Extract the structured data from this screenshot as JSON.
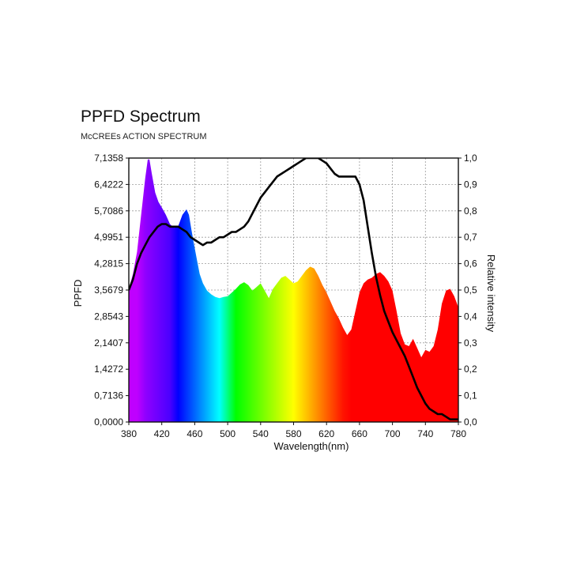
{
  "chart_data": {
    "type": "area",
    "title": "PPFD Spectrum",
    "subtitle": "McCREEs ACTION SPECTRUM",
    "xlabel": "Wavelength(nm)",
    "ylabel": "PPFD",
    "y2label": "Relative intensity",
    "xlim": [
      380,
      780
    ],
    "ylim": [
      0,
      7.1358
    ],
    "y2lim": [
      0,
      1.0
    ],
    "x_ticks": [
      "380",
      "420",
      "460",
      "500",
      "540",
      "580",
      "620",
      "660",
      "700",
      "740",
      "780"
    ],
    "y_ticks": [
      "0,0000",
      "0,7136",
      "1,4272",
      "2,1407",
      "2,8543",
      "3,5679",
      "4,2815",
      "4,9951",
      "5,7086",
      "6,4222",
      "7,1358"
    ],
    "y2_ticks": [
      "0,0",
      "0,1",
      "0,2",
      "0,3",
      "0,4",
      "0,5",
      "0,6",
      "0,7",
      "0,8",
      "0,9",
      "1,0"
    ],
    "grid": true,
    "fill": "rainbow-by-wavelength",
    "series": [
      {
        "axis": "left",
        "x": [
          380,
          385,
          390,
          395,
          400,
          403,
          405,
          408,
          412,
          416,
          420,
          425,
          430,
          435,
          440,
          445,
          450,
          453,
          456,
          460,
          463,
          466,
          470,
          475,
          480,
          485,
          490,
          495,
          500,
          505,
          510,
          515,
          520,
          525,
          530,
          535,
          540,
          545,
          550,
          555,
          560,
          565,
          570,
          575,
          580,
          585,
          590,
          595,
          600,
          605,
          610,
          615,
          620,
          625,
          630,
          635,
          640,
          645,
          650,
          655,
          660,
          665,
          670,
          675,
          680,
          685,
          690,
          695,
          700,
          705,
          710,
          715,
          720,
          725,
          730,
          735,
          740,
          745,
          750,
          755,
          760,
          765,
          770,
          775,
          780
        ],
        "values": [
          3.6,
          4.0,
          4.6,
          5.6,
          6.6,
          7.1,
          7.1,
          6.7,
          6.2,
          5.95,
          5.8,
          5.6,
          5.35,
          5.25,
          5.3,
          5.6,
          5.75,
          5.6,
          5.2,
          4.7,
          4.35,
          4.0,
          3.75,
          3.55,
          3.45,
          3.38,
          3.35,
          3.38,
          3.4,
          3.5,
          3.6,
          3.72,
          3.78,
          3.7,
          3.55,
          3.65,
          3.75,
          3.55,
          3.35,
          3.6,
          3.75,
          3.9,
          3.95,
          3.85,
          3.75,
          3.8,
          3.95,
          4.1,
          4.2,
          4.15,
          3.95,
          3.7,
          3.5,
          3.25,
          3.0,
          2.8,
          2.55,
          2.35,
          2.5,
          3.0,
          3.5,
          3.75,
          3.85,
          3.9,
          4.0,
          4.05,
          3.95,
          3.8,
          3.55,
          3.0,
          2.4,
          2.1,
          2.05,
          2.25,
          2.0,
          1.75,
          1.95,
          1.9,
          2.05,
          2.5,
          3.2,
          3.55,
          3.6,
          3.4,
          3.1
        ]
      },
      {
        "axis": "right",
        "x": [
          380,
          385,
          390,
          395,
          400,
          405,
          410,
          415,
          420,
          425,
          430,
          435,
          440,
          445,
          450,
          455,
          460,
          465,
          470,
          475,
          480,
          485,
          490,
          495,
          500,
          505,
          510,
          515,
          520,
          525,
          530,
          535,
          540,
          545,
          550,
          555,
          560,
          565,
          570,
          575,
          580,
          585,
          590,
          595,
          600,
          605,
          610,
          615,
          620,
          625,
          630,
          635,
          640,
          645,
          650,
          655,
          660,
          665,
          670,
          675,
          680,
          685,
          690,
          695,
          700,
          705,
          710,
          715,
          720,
          725,
          730,
          735,
          740,
          745,
          750,
          755,
          760,
          765,
          770,
          775,
          780
        ],
        "values": [
          0.5,
          0.54,
          0.6,
          0.64,
          0.67,
          0.7,
          0.72,
          0.74,
          0.75,
          0.75,
          0.74,
          0.74,
          0.74,
          0.73,
          0.72,
          0.7,
          0.69,
          0.68,
          0.67,
          0.68,
          0.68,
          0.69,
          0.7,
          0.7,
          0.71,
          0.72,
          0.72,
          0.73,
          0.74,
          0.76,
          0.79,
          0.82,
          0.85,
          0.87,
          0.89,
          0.91,
          0.93,
          0.94,
          0.95,
          0.96,
          0.97,
          0.98,
          0.99,
          1.0,
          1.0,
          1.0,
          1.0,
          0.99,
          0.98,
          0.96,
          0.94,
          0.93,
          0.93,
          0.93,
          0.93,
          0.93,
          0.9,
          0.84,
          0.74,
          0.64,
          0.55,
          0.48,
          0.42,
          0.38,
          0.34,
          0.31,
          0.28,
          0.25,
          0.21,
          0.17,
          0.13,
          0.1,
          0.07,
          0.05,
          0.04,
          0.03,
          0.03,
          0.02,
          0.01,
          0.01,
          0.01
        ]
      }
    ]
  }
}
